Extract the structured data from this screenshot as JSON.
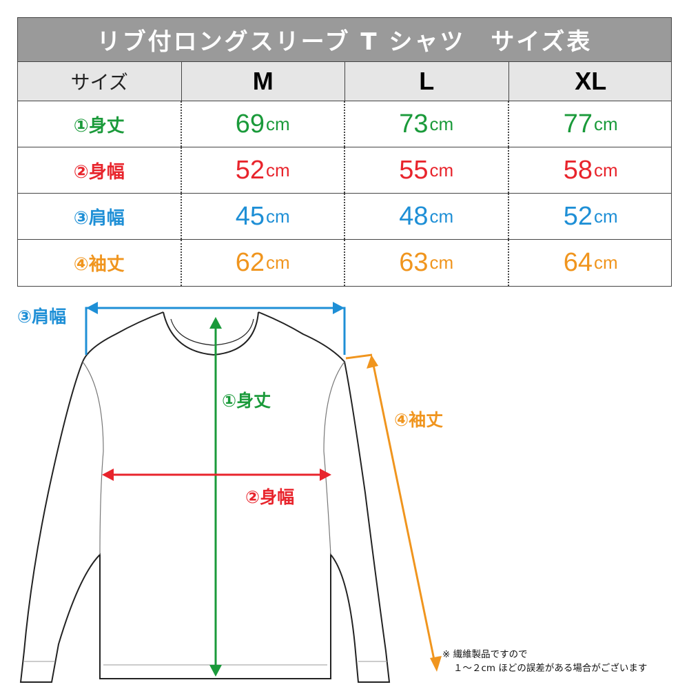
{
  "title": "リブ付ロングスリーブ T シャツ　サイズ表",
  "header": {
    "label": "サイズ",
    "sizes": [
      "M",
      "L",
      "XL"
    ]
  },
  "unit": "cm",
  "rows": [
    {
      "label": "①身丈",
      "color": "#1a9a3a",
      "values": [
        "69",
        "73",
        "77"
      ]
    },
    {
      "label": "②身幅",
      "color": "#e8242c",
      "values": [
        "52",
        "55",
        "58"
      ]
    },
    {
      "label": "③肩幅",
      "color": "#1e8fd6",
      "values": [
        "45",
        "48",
        "52"
      ]
    },
    {
      "label": "④袖丈",
      "color": "#f0951e",
      "values": [
        "62",
        "63",
        "64"
      ]
    }
  ],
  "diagram": {
    "length": "①身丈",
    "chest": "②身幅",
    "shoulder": "③肩幅",
    "sleeve": "④袖丈"
  },
  "note": {
    "line1": "※ 繊維製品ですので",
    "line2": "１～２cm ほどの誤差がある場合がございます"
  }
}
